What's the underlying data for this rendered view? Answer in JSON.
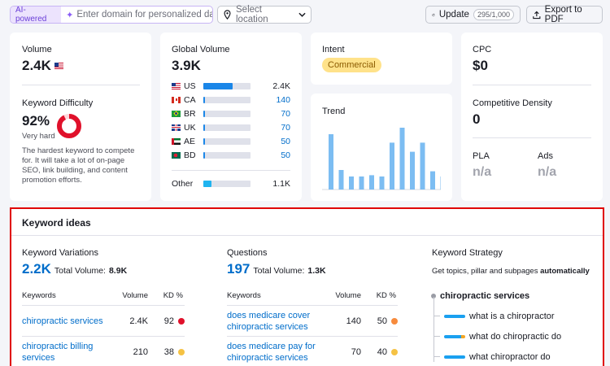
{
  "topbar": {
    "ai_tag": "AI-powered",
    "domain_placeholder": "Enter domain for personalized data",
    "location_placeholder": "Select location",
    "update_label": "Update",
    "update_count": "295/1,000",
    "export_label": "Export to PDF"
  },
  "volume": {
    "label": "Volume",
    "value": "2.4K"
  },
  "difficulty": {
    "label": "Keyword Difficulty",
    "value": "92%",
    "level": "Very hard",
    "percent": 92,
    "description": "The hardest keyword to compete for. It will take a lot of on-page SEO, link building, and content promotion efforts."
  },
  "global_volume": {
    "label": "Global Volume",
    "value": "3.9K",
    "countries": [
      {
        "code": "US",
        "value": "2.4K",
        "share": 0.62,
        "flag": "us-flag"
      },
      {
        "code": "CA",
        "value": "140",
        "share": 0.04,
        "flag": "ca-flag"
      },
      {
        "code": "BR",
        "value": "70",
        "share": 0.03,
        "flag": "br-flag"
      },
      {
        "code": "UK",
        "value": "70",
        "share": 0.03,
        "flag": "uk-flag"
      },
      {
        "code": "AE",
        "value": "50",
        "share": 0.02,
        "flag": "ae-flag"
      },
      {
        "code": "BD",
        "value": "50",
        "share": 0.02,
        "flag": "bd-flag"
      }
    ],
    "other": {
      "label": "Other",
      "value": "1.1K",
      "share": 0.28
    }
  },
  "intent": {
    "label": "Intent",
    "value": "Commercial"
  },
  "trend": {
    "label": "Trend",
    "chart_data": {
      "type": "bar",
      "values": [
        0.85,
        0.3,
        0.2,
        0.2,
        0.22,
        0.2,
        0.72,
        0.95,
        0.58,
        0.72,
        0.28,
        0.2
      ]
    }
  },
  "cpc": {
    "label": "CPC",
    "value": "$0"
  },
  "density": {
    "label": "Competitive Density",
    "value": "0"
  },
  "pla": {
    "label": "PLA",
    "value": "n/a"
  },
  "ads": {
    "label": "Ads",
    "value": "n/a"
  },
  "ideas": {
    "title": "Keyword ideas",
    "variations": {
      "label": "Keyword Variations",
      "count": "2.2K",
      "total_label": "Total Volume:",
      "total_value": "8.9K",
      "headers": [
        "Keywords",
        "Volume",
        "KD %"
      ],
      "rows": [
        {
          "keyword": "chiropractic services",
          "volume": "2.4K",
          "kd": "92",
          "color": "#e0112b"
        },
        {
          "keyword": "chiropractic billing services",
          "volume": "210",
          "kd": "38",
          "color": "#f5c244"
        }
      ]
    },
    "questions": {
      "label": "Questions",
      "count": "197",
      "total_label": "Total Volume:",
      "total_value": "1.3K",
      "headers": [
        "Keywords",
        "Volume",
        "KD %"
      ],
      "rows": [
        {
          "keyword": "does medicare cover chiropractic services",
          "volume": "140",
          "kd": "50",
          "color": "#f78b3d"
        },
        {
          "keyword": "does medicare pay for chiropractic services",
          "volume": "70",
          "kd": "40",
          "color": "#f5c244"
        }
      ]
    },
    "strategy": {
      "label": "Keyword Strategy",
      "desc_prefix": "Get topics, pillar and subpages ",
      "desc_bold": "automatically",
      "root": "chiropractic services",
      "items": [
        "what is a chiropractor",
        "what do chiropractic do",
        "what chiropractor do"
      ]
    }
  }
}
